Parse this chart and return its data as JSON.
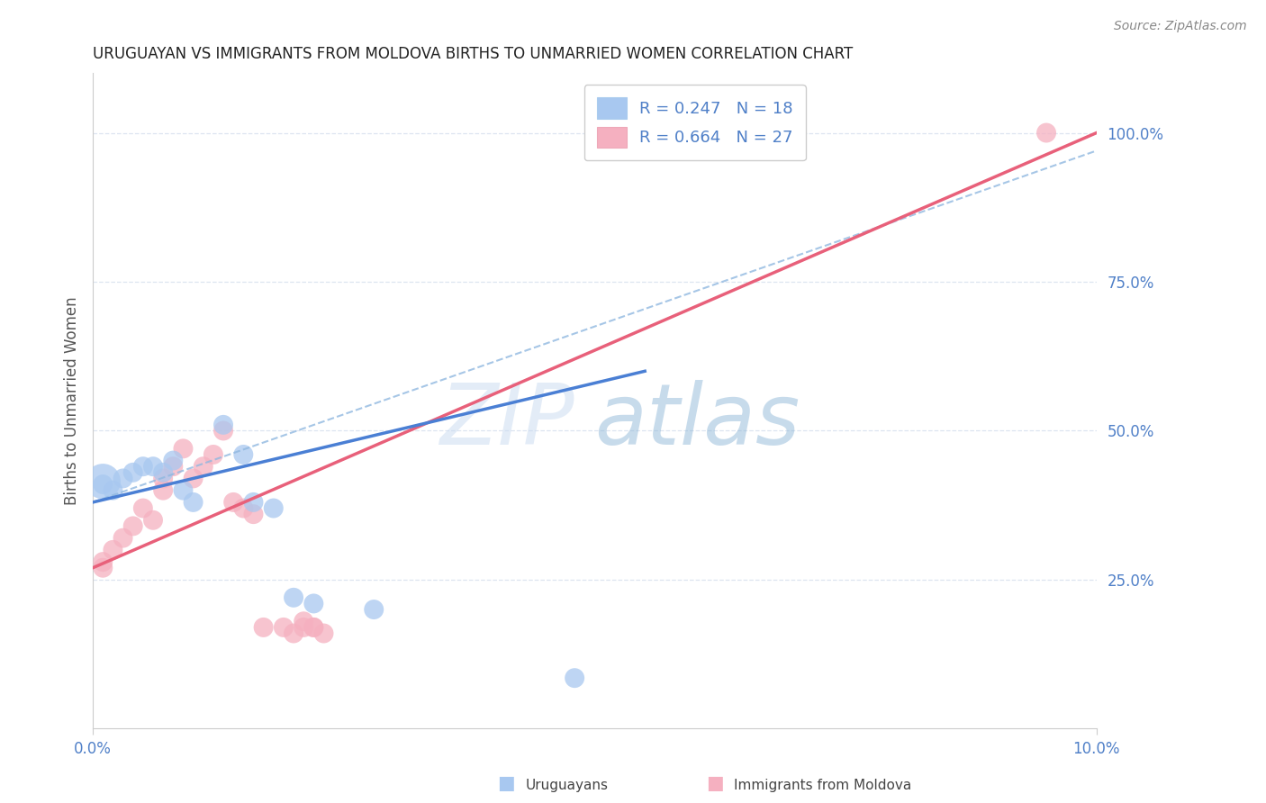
{
  "title": "URUGUAYAN VS IMMIGRANTS FROM MOLDOVA BIRTHS TO UNMARRIED WOMEN CORRELATION CHART",
  "source": "Source: ZipAtlas.com",
  "ylabel": "Births to Unmarried Women",
  "xlim": [
    0.0,
    0.1
  ],
  "ylim": [
    0.0,
    1.1
  ],
  "plot_ylim": [
    0.0,
    1.1
  ],
  "right_yticks": [
    0.25,
    0.5,
    0.75,
    1.0
  ],
  "right_yticklabels": [
    "25.0%",
    "50.0%",
    "75.0%",
    "100.0%"
  ],
  "xticks": [
    0.0,
    0.1
  ],
  "xticklabels": [
    "0.0%",
    "10.0%"
  ],
  "watermark_zip": "ZIP",
  "watermark_atlas": "atlas",
  "legend_blue_label": "R = 0.247   N = 18",
  "legend_pink_label": "R = 0.664   N = 27",
  "blue_scatter_color": "#a8c8f0",
  "pink_scatter_color": "#f5b0c0",
  "blue_line_color": "#4a7fd4",
  "pink_line_color": "#e8607a",
  "blue_dash_color": "#90b8e0",
  "axis_label_color": "#5080c8",
  "grid_color": "#dde5f0",
  "title_color": "#222222",
  "source_color": "#888888",
  "uruguayan_legend_text": "Uruguayans",
  "moldova_legend_text": "Immigrants from Moldova",
  "uru_x": [
    0.001,
    0.002,
    0.003,
    0.004,
    0.005,
    0.006,
    0.007,
    0.008,
    0.009,
    0.01,
    0.013,
    0.015,
    0.016,
    0.018,
    0.02,
    0.022,
    0.028,
    0.048
  ],
  "uru_y": [
    0.41,
    0.4,
    0.42,
    0.43,
    0.44,
    0.44,
    0.43,
    0.45,
    0.4,
    0.38,
    0.51,
    0.46,
    0.38,
    0.37,
    0.22,
    0.21,
    0.2,
    0.085
  ],
  "mol_x": [
    0.001,
    0.001,
    0.002,
    0.003,
    0.004,
    0.005,
    0.006,
    0.007,
    0.007,
    0.008,
    0.009,
    0.01,
    0.011,
    0.012,
    0.013,
    0.014,
    0.015,
    0.016,
    0.017,
    0.019,
    0.02,
    0.021,
    0.021,
    0.022,
    0.022,
    0.023,
    0.095
  ],
  "mol_y": [
    0.27,
    0.28,
    0.3,
    0.32,
    0.34,
    0.37,
    0.35,
    0.4,
    0.42,
    0.44,
    0.47,
    0.42,
    0.44,
    0.46,
    0.5,
    0.38,
    0.37,
    0.36,
    0.17,
    0.17,
    0.16,
    0.17,
    0.18,
    0.17,
    0.17,
    0.16,
    1.0
  ],
  "blue_line_x0": 0.0,
  "blue_line_y0": 0.38,
  "blue_line_x1": 0.1,
  "blue_line_y1": 1.0,
  "pink_line_x0": 0.0,
  "pink_line_y0": 0.27,
  "pink_line_x1": 0.1,
  "pink_line_y1": 1.0
}
